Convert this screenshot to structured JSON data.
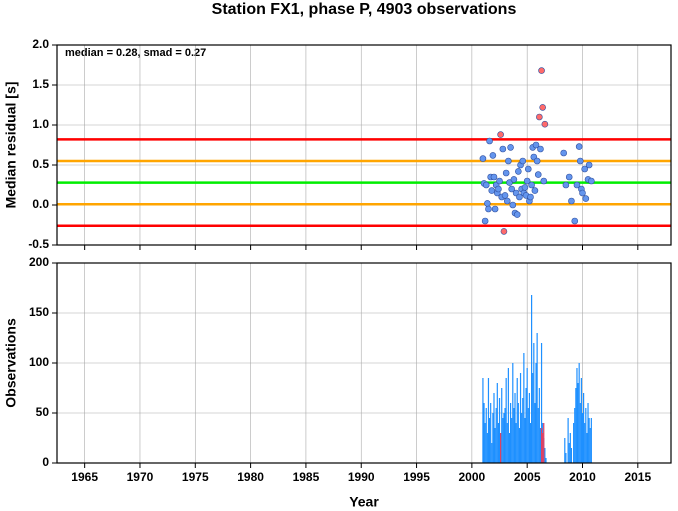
{
  "chart_data": [
    {
      "type": "scatter",
      "title": "Station FX1, phase P, 4903 observations",
      "ylabel": "Median residual [s]",
      "annotation": "median = 0.28, smad = 0.27",
      "xlim": [
        1962.5,
        2018
      ],
      "xticks": [
        1965,
        1970,
        1975,
        1980,
        1985,
        1990,
        1995,
        2000,
        2005,
        2010,
        2015
      ],
      "ylim": [
        -0.5,
        2
      ],
      "yticks": [
        -0.5,
        {
          "value": 0,
          "label": "0.0"
        },
        0.5,
        {
          "value": 1,
          "label": "1.0"
        },
        1.5,
        {
          "value": 2,
          "label": "2.0"
        }
      ],
      "grid": true,
      "hlines": [
        {
          "value": 0.82,
          "color": "#ff0000"
        },
        {
          "value": 0.55,
          "color": "#ffa500"
        },
        {
          "value": 0.28,
          "color": "#00ee00"
        },
        {
          "value": 0.01,
          "color": "#ffa500"
        },
        {
          "value": -0.26,
          "color": "#ff0000"
        }
      ],
      "series": [
        {
          "color": "#6495ed",
          "x": [
            2001.0,
            2001.1,
            2001.2,
            2001.3,
            2001.4,
            2001.5,
            2001.6,
            2001.7,
            2001.8,
            2001.9,
            2002.0,
            2002.1,
            2002.2,
            2002.3,
            2002.4,
            2002.5,
            2002.7,
            2002.8,
            2003.0,
            2003.1,
            2003.2,
            2003.3,
            2003.4,
            2003.5,
            2003.6,
            2003.7,
            2003.8,
            2003.9,
            2004.0,
            2004.1,
            2004.2,
            2004.3,
            2004.4,
            2004.5,
            2004.6,
            2004.7,
            2004.8,
            2004.9,
            2005.0,
            2005.1,
            2005.2,
            2005.3,
            2005.4,
            2005.5,
            2005.6,
            2005.7,
            2005.8,
            2005.9,
            2006.0,
            2006.2,
            2006.5,
            2008.3,
            2008.5,
            2008.8,
            2009.0,
            2009.3,
            2009.5,
            2009.7,
            2009.8,
            2009.9,
            2010.0,
            2010.2,
            2010.3,
            2010.5,
            2010.6,
            2010.8
          ],
          "values": [
            0.58,
            0.27,
            -0.2,
            0.25,
            0.02,
            -0.05,
            0.8,
            0.35,
            0.18,
            0.62,
            0.35,
            -0.05,
            0.25,
            0.15,
            0.2,
            0.3,
            0.1,
            0.7,
            0.12,
            0.4,
            0.05,
            0.55,
            0.28,
            0.72,
            0.2,
            0.0,
            0.32,
            -0.1,
            0.15,
            -0.12,
            0.42,
            0.1,
            0.5,
            0.2,
            0.55,
            0.15,
            0.22,
            0.12,
            0.3,
            0.45,
            0.05,
            0.1,
            0.25,
            0.72,
            0.6,
            0.18,
            0.75,
            0.55,
            0.38,
            0.7,
            0.3,
            0.65,
            0.25,
            0.35,
            0.05,
            -0.2,
            0.25,
            0.73,
            0.55,
            0.2,
            0.15,
            0.45,
            0.08,
            0.32,
            0.5,
            0.3
          ]
        },
        {
          "color": "#ff6a6a",
          "x": [
            2002.6,
            2002.9,
            2006.1,
            2006.3,
            2006.4,
            2006.6
          ],
          "values": [
            0.88,
            -0.33,
            1.1,
            1.68,
            1.22,
            1.01
          ]
        }
      ]
    },
    {
      "type": "bar",
      "ylabel": "Observations",
      "xlabel": "Year",
      "xlim": [
        1962.5,
        2018
      ],
      "xticks": [
        1965,
        1970,
        1975,
        1980,
        1985,
        1990,
        1995,
        2000,
        2005,
        2010,
        2015
      ],
      "ylim": [
        0,
        200
      ],
      "yticks": [
        0,
        50,
        100,
        150,
        200
      ],
      "grid": true,
      "series": [
        {
          "color": "#1e90ff",
          "x": [
            2001.0,
            2001.1,
            2001.2,
            2001.3,
            2001.4,
            2001.5,
            2001.6,
            2001.7,
            2001.8,
            2001.9,
            2002.0,
            2002.1,
            2002.2,
            2002.3,
            2002.4,
            2002.5,
            2002.6,
            2002.7,
            2002.8,
            2002.9,
            2003.0,
            2003.1,
            2003.2,
            2003.3,
            2003.4,
            2003.5,
            2003.6,
            2003.7,
            2003.8,
            2003.9,
            2004.0,
            2004.1,
            2004.2,
            2004.3,
            2004.4,
            2004.5,
            2004.6,
            2004.7,
            2004.8,
            2004.9,
            2005.0,
            2005.1,
            2005.2,
            2005.3,
            2005.4,
            2005.5,
            2005.6,
            2005.7,
            2005.8,
            2005.9,
            2006.0,
            2006.1,
            2006.2,
            2006.3,
            2006.4,
            2006.5,
            2006.6,
            2006.7,
            2008.4,
            2008.5,
            2008.7,
            2008.8,
            2008.9,
            2009.0,
            2009.2,
            2009.3,
            2009.4,
            2009.5,
            2009.6,
            2009.7,
            2009.8,
            2009.9,
            2010.0,
            2010.1,
            2010.2,
            2010.3,
            2010.4,
            2010.5,
            2010.6,
            2010.7,
            2010.8
          ],
          "values": [
            85,
            60,
            40,
            55,
            30,
            85,
            45,
            60,
            20,
            50,
            70,
            35,
            55,
            80,
            40,
            65,
            30,
            75,
            45,
            50,
            55,
            85,
            40,
            95,
            30,
            60,
            45,
            100,
            55,
            70,
            40,
            85,
            60,
            35,
            90,
            50,
            65,
            110,
            45,
            75,
            95,
            55,
            70,
            40,
            168,
            90,
            120,
            60,
            100,
            130,
            55,
            75,
            35,
            120,
            40,
            25,
            15,
            5,
            25,
            10,
            45,
            20,
            30,
            15,
            40,
            55,
            75,
            95,
            80,
            100,
            60,
            85,
            50,
            70,
            40,
            55,
            30,
            60,
            45,
            35,
            45
          ]
        },
        {
          "color": "#e04060",
          "x": [
            2002.6,
            2006.3,
            2006.4,
            2006.5
          ],
          "values": [
            30,
            35,
            30,
            40
          ]
        }
      ]
    }
  ]
}
